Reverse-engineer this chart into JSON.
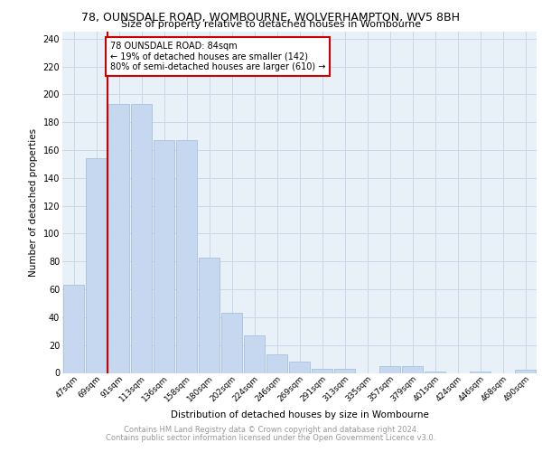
{
  "title": "78, OUNSDALE ROAD, WOMBOURNE, WOLVERHAMPTON, WV5 8BH",
  "subtitle": "Size of property relative to detached houses in Wombourne",
  "xlabel": "Distribution of detached houses by size in Wombourne",
  "ylabel": "Number of detached properties",
  "categories": [
    "47sqm",
    "69sqm",
    "91sqm",
    "113sqm",
    "136sqm",
    "158sqm",
    "180sqm",
    "202sqm",
    "224sqm",
    "246sqm",
    "269sqm",
    "291sqm",
    "313sqm",
    "335sqm",
    "357sqm",
    "379sqm",
    "401sqm",
    "424sqm",
    "446sqm",
    "468sqm",
    "490sqm"
  ],
  "values": [
    63,
    154,
    193,
    193,
    167,
    167,
    83,
    43,
    27,
    13,
    8,
    3,
    3,
    0,
    5,
    5,
    1,
    0,
    1,
    0,
    2
  ],
  "bar_color": "#c5d8f0",
  "bar_edge_color": "#a0b8d8",
  "vline_color": "#cc0000",
  "annotation_text": "78 OUNSDALE ROAD: 84sqm\n← 19% of detached houses are smaller (142)\n80% of semi-detached houses are larger (610) →",
  "annotation_box_color": "#ffffff",
  "annotation_box_edge": "#cc0000",
  "grid_color": "#c8d8e8",
  "background_color": "#e8f0f8",
  "footer_line1": "Contains HM Land Registry data © Crown copyright and database right 2024.",
  "footer_line2": "Contains public sector information licensed under the Open Government Licence v3.0.",
  "ylim": [
    0,
    245
  ],
  "yticks": [
    0,
    20,
    40,
    60,
    80,
    100,
    120,
    140,
    160,
    180,
    200,
    220,
    240
  ]
}
